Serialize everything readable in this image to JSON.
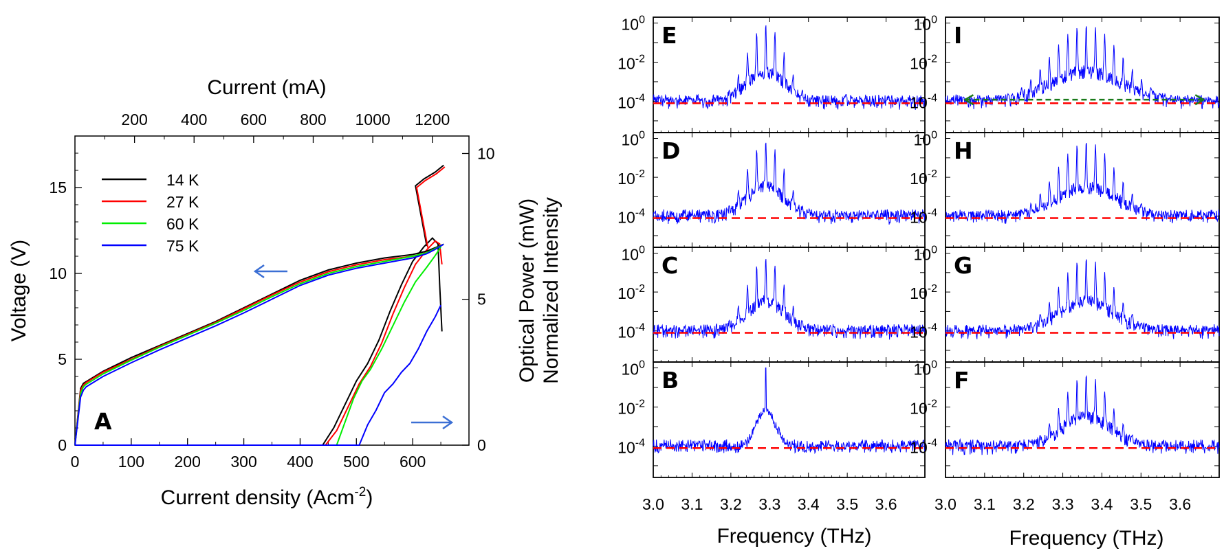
{
  "chart_data": [
    {
      "id": "A",
      "type": "line",
      "panel_label": "A",
      "xlabel": "Current density (Acm",
      "xlabel_sup": "-2",
      "xlabel_close": ")",
      "top_xlabel": "Current (mA)",
      "ylabel": "Voltage (V)",
      "y2label": "Optical Power (mW)",
      "xlim": [
        0,
        700
      ],
      "ylim": [
        0,
        18
      ],
      "y2lim": [
        0,
        10.6
      ],
      "x_ticks": [
        "0",
        "100",
        "200",
        "300",
        "400",
        "500",
        "600"
      ],
      "x_tick_values": [
        0,
        100,
        200,
        300,
        400,
        500,
        600
      ],
      "top_ticks": [
        "200",
        "400",
        "600",
        "800",
        "1000",
        "1200"
      ],
      "top_tick_values": [
        200,
        400,
        600,
        800,
        1000,
        1200
      ],
      "ma_per_acm2": 1.89,
      "y_ticks": [
        "0",
        "5",
        "10",
        "15"
      ],
      "y_tick_values": [
        0,
        5,
        10,
        15
      ],
      "y2_ticks": [
        "0",
        "5",
        "10"
      ],
      "y2_tick_values": [
        0,
        5,
        10
      ],
      "legend": [
        {
          "name": "14 K",
          "color": "#000000"
        },
        {
          "name": "27 K",
          "color": "#ff0000"
        },
        {
          "name": "60 K",
          "color": "#00ee00"
        },
        {
          "name": "75 K",
          "color": "#0000ff"
        }
      ],
      "voltage_series": [
        {
          "name": "14 K",
          "color": "#000000",
          "x": [
            0,
            10,
            15,
            20,
            30,
            50,
            100,
            150,
            200,
            250,
            300,
            350,
            400,
            450,
            500,
            550,
            600,
            625,
            640,
            655
          ],
          "y": [
            0,
            3.3,
            3.6,
            3.7,
            3.9,
            4.3,
            5.1,
            5.8,
            6.5,
            7.2,
            8.0,
            8.8,
            9.6,
            10.2,
            10.6,
            10.9,
            11.1,
            11.3,
            11.5,
            11.7
          ]
        },
        {
          "name": "27 K",
          "color": "#ff0000",
          "x": [
            0,
            10,
            15,
            20,
            30,
            50,
            100,
            150,
            200,
            250,
            300,
            350,
            400,
            450,
            500,
            550,
            600,
            625,
            640,
            655
          ],
          "y": [
            0,
            3.2,
            3.5,
            3.65,
            3.85,
            4.25,
            5.0,
            5.75,
            6.45,
            7.15,
            7.95,
            8.75,
            9.5,
            10.1,
            10.5,
            10.8,
            11.0,
            11.2,
            11.45,
            11.7
          ]
        },
        {
          "name": "60 K",
          "color": "#00ee00",
          "x": [
            0,
            10,
            15,
            20,
            30,
            50,
            100,
            150,
            200,
            250,
            300,
            350,
            400,
            450,
            500,
            550,
            600,
            625,
            640,
            655
          ],
          "y": [
            0,
            3.0,
            3.4,
            3.55,
            3.75,
            4.15,
            4.95,
            5.7,
            6.4,
            7.1,
            7.85,
            8.65,
            9.4,
            10.0,
            10.4,
            10.7,
            11.0,
            11.2,
            11.45,
            11.7
          ]
        },
        {
          "name": "75 K",
          "color": "#0000ff",
          "x": [
            0,
            10,
            15,
            20,
            30,
            50,
            100,
            150,
            200,
            250,
            300,
            350,
            400,
            450,
            500,
            550,
            600,
            625,
            640,
            655
          ],
          "y": [
            0,
            2.8,
            3.2,
            3.4,
            3.6,
            4.0,
            4.8,
            5.55,
            6.25,
            6.95,
            7.7,
            8.5,
            9.3,
            9.9,
            10.3,
            10.6,
            10.9,
            11.15,
            11.4,
            11.7
          ]
        }
      ],
      "voltage_jump": {
        "name": "14 K / 27 K",
        "x": [
          625,
          605,
          620,
          640,
          655
        ],
        "y": [
          11.6,
          15.1,
          15.5,
          15.9,
          16.3
        ]
      },
      "power_series": [
        {
          "name": "14 K",
          "color": "#000000",
          "x": [
            0,
            440,
            460,
            480,
            500,
            520,
            540,
            560,
            580,
            600,
            620,
            635,
            645,
            648,
            652
          ],
          "y": [
            0,
            0,
            0.6,
            1.4,
            2.2,
            2.8,
            3.6,
            4.6,
            5.5,
            6.3,
            6.8,
            7.1,
            6.9,
            5.5,
            3.9
          ]
        },
        {
          "name": "27 K",
          "color": "#ff0000",
          "x": [
            0,
            445,
            465,
            485,
            505,
            525,
            545,
            565,
            585,
            605,
            625,
            640,
            648,
            652
          ],
          "y": [
            0,
            0,
            0.5,
            1.3,
            2.1,
            2.7,
            3.5,
            4.5,
            5.4,
            6.2,
            6.7,
            7.0,
            6.9,
            6.2
          ]
        },
        {
          "name": "60 K",
          "color": "#00ee00",
          "x": [
            0,
            465,
            480,
            495,
            510,
            525,
            545,
            565,
            585,
            605,
            625,
            640,
            650
          ],
          "y": [
            0,
            0,
            0.8,
            1.6,
            2.2,
            2.6,
            3.3,
            4.1,
            4.9,
            5.6,
            6.1,
            6.5,
            6.8
          ]
        },
        {
          "name": "75 K",
          "color": "#0000ff",
          "x": [
            0,
            505,
            520,
            535,
            550,
            565,
            580,
            595,
            610,
            625,
            640,
            650
          ],
          "y": [
            0,
            0,
            0.7,
            1.2,
            1.8,
            2.1,
            2.5,
            2.8,
            3.3,
            3.9,
            4.4,
            4.8
          ]
        }
      ],
      "arrow_left_hint": "Voltage axis",
      "arrow_right_hint": "Optical Power axis"
    },
    {
      "id": "spectra",
      "type": "line",
      "ylabel": "Normalized Intensity",
      "xlabel": "Frequency (THz)",
      "xlim": [
        3.0,
        3.7
      ],
      "x_ticks": [
        "3.0",
        "3.1",
        "3.2",
        "3.3",
        "3.4",
        "3.5",
        "3.6"
      ],
      "x_tick_values": [
        3.0,
        3.1,
        3.2,
        3.3,
        3.4,
        3.5,
        3.6
      ],
      "y_log_range": [
        -5.6,
        0.3
      ],
      "y_tick_labels": [
        {
          "base": "10",
          "exp": "0",
          "log": 0
        },
        {
          "base": "10",
          "exp": "-2",
          "log": -2
        },
        {
          "base": "10",
          "exp": "-4",
          "log": -4
        }
      ],
      "noise_floor_log": -4.1,
      "floor_color": "#ff0000",
      "trace_color": "#0000ff",
      "panels": [
        {
          "label": "E",
          "column": 0,
          "row": 0,
          "center": 3.29,
          "width": 0.07,
          "spacing": 0.0118,
          "modes": 12,
          "peak_log": 0
        },
        {
          "label": "D",
          "column": 0,
          "row": 1,
          "center": 3.29,
          "width": 0.07,
          "spacing": 0.0118,
          "modes": 12,
          "peak_log": -0.1
        },
        {
          "label": "C",
          "column": 0,
          "row": 2,
          "center": 3.29,
          "width": 0.07,
          "spacing": 0.0118,
          "modes": 12,
          "peak_log": -0.2
        },
        {
          "label": "B",
          "column": 0,
          "row": 3,
          "center": 3.29,
          "width": 0.0,
          "spacing": 0.0118,
          "modes": 1,
          "peak_log": 0
        },
        {
          "label": "I",
          "column": 1,
          "row": 0,
          "center": 3.36,
          "width": 0.13,
          "spacing": 0.0118,
          "modes": 24,
          "peak_log": -0.05,
          "span_arrow": [
            3.05,
            3.66
          ]
        },
        {
          "label": "H",
          "column": 1,
          "row": 1,
          "center": 3.36,
          "width": 0.11,
          "spacing": 0.0118,
          "modes": 20,
          "peak_log": -0.1
        },
        {
          "label": "G",
          "column": 1,
          "row": 2,
          "center": 3.36,
          "width": 0.1,
          "spacing": 0.0118,
          "modes": 18,
          "peak_log": -0.2
        },
        {
          "label": "F",
          "column": 1,
          "row": 3,
          "center": 3.36,
          "width": 0.09,
          "spacing": 0.0118,
          "modes": 16,
          "peak_log": -0.3
        }
      ]
    }
  ]
}
